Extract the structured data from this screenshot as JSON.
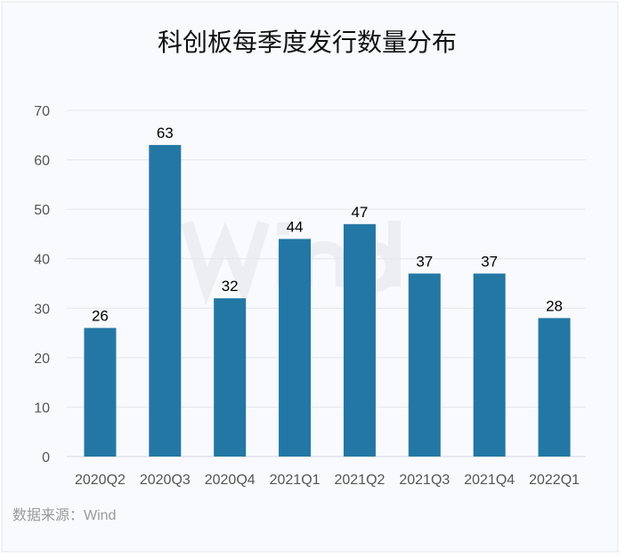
{
  "chart_data": {
    "type": "bar",
    "title": "科创板每季度发行数量分布",
    "categories": [
      "2020Q2",
      "2020Q3",
      "2020Q4",
      "2021Q1",
      "2021Q2",
      "2021Q3",
      "2021Q4",
      "2022Q1"
    ],
    "values": [
      26,
      63,
      32,
      44,
      47,
      37,
      37,
      28
    ],
    "ylim": [
      0,
      70
    ],
    "yticks": [
      0,
      10,
      20,
      30,
      40,
      50,
      60,
      70
    ],
    "grid": true,
    "bar_color": "#2277a4",
    "source": "数据来源：Wind",
    "watermark": "Wind"
  }
}
